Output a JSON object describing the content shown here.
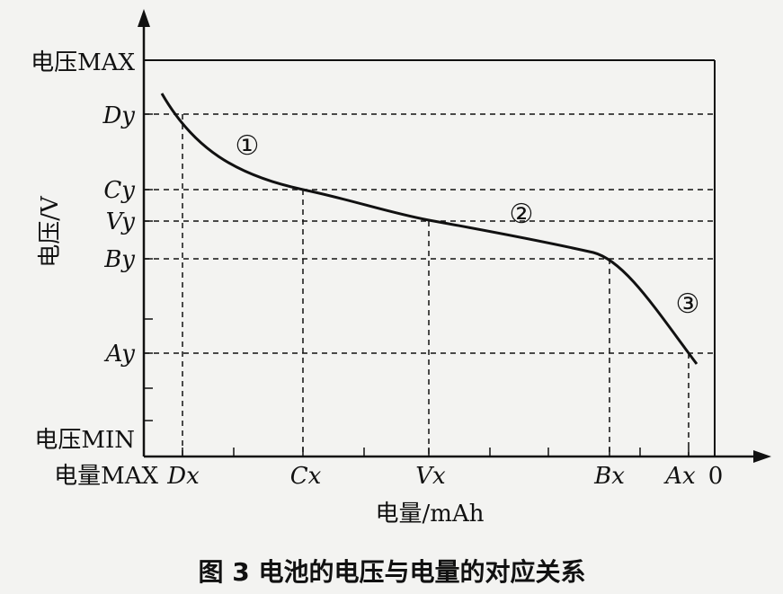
{
  "chart_data": {
    "type": "line",
    "caption": "图 3 电池的电压与电量的对应关系",
    "xlabel": "电量/mAh",
    "ylabel": "电压/V",
    "x_ticks": [
      "电量MAX",
      "Dx",
      "Cx",
      "Vx",
      "Bx",
      "Ax",
      "0"
    ],
    "y_ticks": [
      "电压MAX",
      "Dy",
      "Cy",
      "Vy",
      "By",
      "Ay",
      "电压MIN"
    ],
    "x_axis_direction": "decreasing (MAX at left, 0 at right)",
    "grid": false,
    "reference_points": [
      {
        "x": "Dx",
        "y": "Dy"
      },
      {
        "x": "Cx",
        "y": "Cy"
      },
      {
        "x": "Vx",
        "y": "Vy"
      },
      {
        "x": "Bx",
        "y": "By"
      },
      {
        "x": "Ax",
        "y": "Ay"
      }
    ],
    "segment_labels": [
      "①",
      "②",
      "③"
    ]
  }
}
